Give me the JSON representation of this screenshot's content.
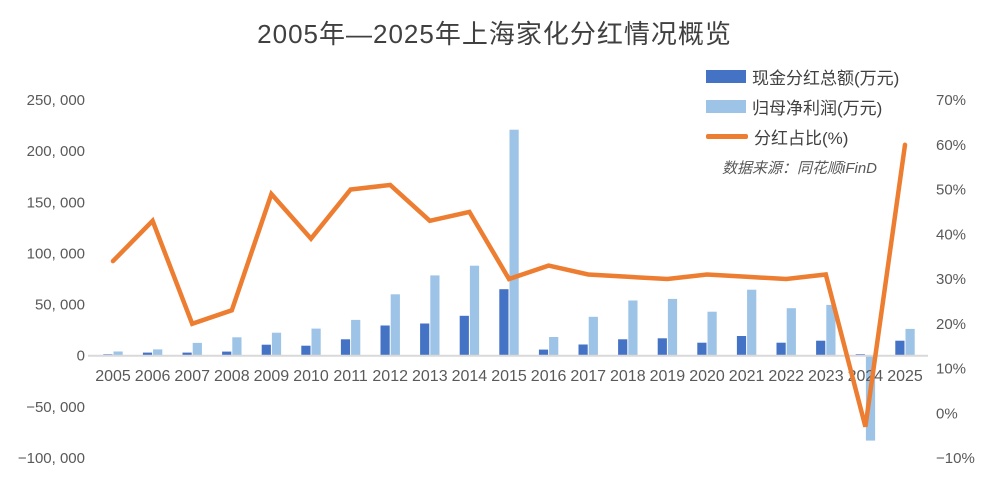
{
  "title": "2005年—2025年上海家化分红情况概览",
  "source_note": "数据来源：同花顺iFinD",
  "colors": {
    "cash_bar": "#4472C4",
    "net_profit_bar": "#9DC3E6",
    "ratio_line": "#ED7D31",
    "axis_line": "#D9D9D9",
    "tick_text": "#595959",
    "title_text": "#404040"
  },
  "chart_data": {
    "type": "bar",
    "subtype": "grouped-bars-with-line",
    "title": "2005年—2025年上海家化分红情况概览",
    "grid": false,
    "legend_position": "top-right",
    "categories": [
      "2005",
      "2006",
      "2007",
      "2008",
      "2009",
      "2010",
      "2011",
      "2012",
      "2013",
      "2014",
      "2015",
      "2016",
      "2017",
      "2018",
      "2019",
      "2020",
      "2021",
      "2022",
      "2023",
      "2024",
      "2025"
    ],
    "series": [
      {
        "name": "现金分红总额(万元)",
        "type": "bar",
        "axis": "left",
        "color": "#4472C4",
        "values": [
          1400,
          3000,
          3000,
          4000,
          10800,
          9800,
          16000,
          29500,
          31500,
          39000,
          65000,
          6000,
          11000,
          16000,
          17000,
          12700,
          19300,
          12700,
          14700,
          1500,
          14700
        ]
      },
      {
        "name": "归母净利润(万元)",
        "type": "bar",
        "axis": "left",
        "color": "#9DC3E6",
        "values": [
          4100,
          6200,
          12500,
          18000,
          22500,
          26500,
          35000,
          60000,
          78500,
          88000,
          221000,
          18300,
          38000,
          54000,
          55500,
          43000,
          64500,
          46500,
          49700,
          -83000,
          26200
        ]
      },
      {
        "name": "分红占比(%)",
        "type": "line",
        "axis": "right",
        "color": "#ED7D31",
        "values": [
          34,
          43,
          20,
          23,
          49,
          39,
          50,
          51,
          43,
          45,
          30,
          33,
          31,
          30.5,
          30,
          31,
          30.5,
          30,
          31,
          -3,
          60
        ]
      }
    ],
    "left_axis": {
      "min": -100000,
      "max": 250000,
      "step": 50000,
      "tick_labels": [
        "250, 000",
        "200, 000",
        "150, 000",
        "100, 000",
        "50, 000",
        "0",
        "−50, 000",
        "−100, 000"
      ]
    },
    "right_axis": {
      "min": -10,
      "max": 70,
      "step": 10,
      "tick_labels": [
        "70%",
        "60%",
        "50%",
        "40%",
        "30%",
        "20%",
        "10%",
        "0%",
        "−10%"
      ]
    }
  }
}
